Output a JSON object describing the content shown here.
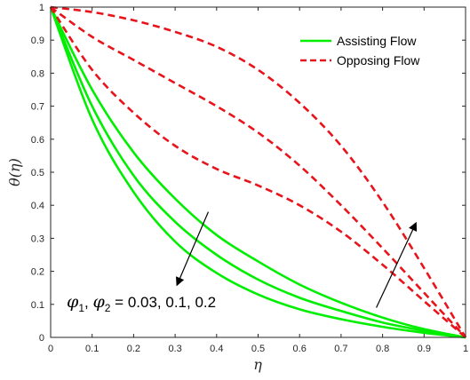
{
  "chart_data": {
    "type": "line",
    "xlabel": "η",
    "ylabel": "θ(η)",
    "xlim": [
      0,
      1
    ],
    "ylim": [
      0,
      1
    ],
    "xticks": [
      "0",
      "0.1",
      "0.2",
      "0.3",
      "0.4",
      "0.5",
      "0.6",
      "0.7",
      "0.8",
      "0.9",
      "1"
    ],
    "yticks": [
      "0",
      "0.1",
      "0.2",
      "0.3",
      "0.4",
      "0.5",
      "0.6",
      "0.7",
      "0.8",
      "0.9",
      "1"
    ],
    "grid": false,
    "legend_position": "top-right",
    "x": [
      0,
      0.1,
      0.2,
      0.3,
      0.4,
      0.5,
      0.6,
      0.7,
      0.8,
      0.9,
      1.0
    ],
    "series": [
      {
        "name": "Assisting Flow",
        "style": "solid",
        "color": "#00ee00",
        "values": [
          1.0,
          0.75,
          0.56,
          0.42,
          0.31,
          0.23,
          0.16,
          0.105,
          0.06,
          0.025,
          0.0
        ]
      },
      {
        "name": "Assisting Flow",
        "style": "solid",
        "color": "#00ee00",
        "values": [
          1.0,
          0.7,
          0.49,
          0.35,
          0.25,
          0.175,
          0.12,
          0.08,
          0.045,
          0.02,
          0.0
        ]
      },
      {
        "name": "Assisting Flow",
        "style": "solid",
        "color": "#00ee00",
        "values": [
          1.0,
          0.66,
          0.44,
          0.29,
          0.195,
          0.13,
          0.085,
          0.055,
          0.032,
          0.014,
          0.0
        ]
      },
      {
        "name": "Opposing Flow",
        "style": "dashed",
        "color": "#e8141b",
        "values": [
          1.0,
          0.81,
          0.68,
          0.58,
          0.51,
          0.46,
          0.4,
          0.32,
          0.22,
          0.11,
          0.0
        ]
      },
      {
        "name": "Opposing Flow",
        "style": "dashed",
        "color": "#e8141b",
        "values": [
          1.0,
          0.91,
          0.84,
          0.77,
          0.7,
          0.62,
          0.52,
          0.4,
          0.27,
          0.135,
          0.0
        ]
      },
      {
        "name": "Opposing Flow",
        "style": "dashed",
        "color": "#e8141b",
        "values": [
          1.0,
          0.985,
          0.96,
          0.925,
          0.88,
          0.81,
          0.71,
          0.58,
          0.41,
          0.21,
          0.0
        ]
      }
    ],
    "legend": [
      {
        "label": "Assisting Flow",
        "style": "solid",
        "color": "#00ee00"
      },
      {
        "label": "Opposing Flow",
        "style": "dashed",
        "color": "#e8141b"
      }
    ],
    "annotation": {
      "phi": "φ",
      "sub1": "1",
      "sep": ", ",
      "sub2": "2",
      "values": " = 0.03, 0.1, 0.2"
    },
    "arrows": [
      {
        "from": [
          0.38,
          0.38
        ],
        "to": [
          0.305,
          0.16
        ]
      },
      {
        "from": [
          0.785,
          0.09
        ],
        "to": [
          0.88,
          0.345
        ]
      }
    ]
  }
}
